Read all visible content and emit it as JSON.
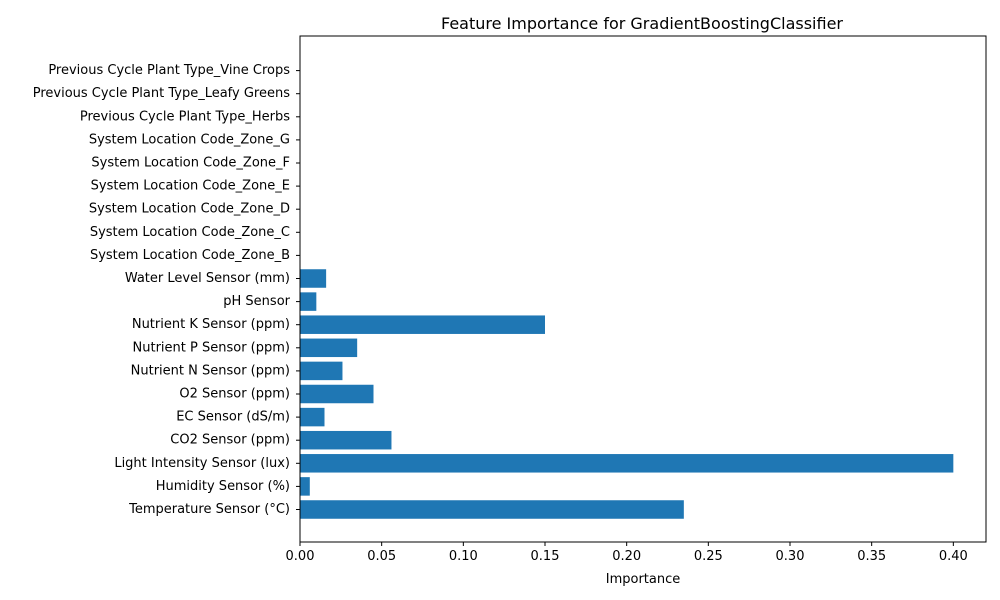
{
  "chart_data": {
    "type": "bar",
    "orientation": "horizontal",
    "title": "Feature Importance for GradientBoostingClassifier",
    "xlabel": "Importance",
    "ylabel": "",
    "xlim": [
      0,
      0.42
    ],
    "xticks": [
      0.0,
      0.05,
      0.1,
      0.15,
      0.2,
      0.25,
      0.3,
      0.35,
      0.4
    ],
    "xtick_labels": [
      "0.00",
      "0.05",
      "0.10",
      "0.15",
      "0.20",
      "0.25",
      "0.30",
      "0.35",
      "0.40"
    ],
    "bar_color": "#1f77b4",
    "grid": false,
    "categories": [
      "Temperature Sensor (°C)",
      "Humidity Sensor (%)",
      "Light Intensity Sensor (lux)",
      "CO2 Sensor (ppm)",
      "EC Sensor (dS/m)",
      "O2 Sensor (ppm)",
      "Nutrient N Sensor (ppm)",
      "Nutrient P Sensor (ppm)",
      "Nutrient K Sensor (ppm)",
      "pH Sensor",
      "Water Level Sensor (mm)",
      "System Location Code_Zone_B",
      "System Location Code_Zone_C",
      "System Location Code_Zone_D",
      "System Location Code_Zone_E",
      "System Location Code_Zone_F",
      "System Location Code_Zone_G",
      "Previous Cycle Plant Type_Herbs",
      "Previous Cycle Plant Type_Leafy Greens",
      "Previous Cycle Plant Type_Vine Crops"
    ],
    "values": [
      0.235,
      0.006,
      0.4,
      0.056,
      0.015,
      0.045,
      0.026,
      0.035,
      0.15,
      0.01,
      0.016,
      0,
      0,
      0,
      0,
      0,
      0,
      0,
      0,
      0
    ]
  }
}
